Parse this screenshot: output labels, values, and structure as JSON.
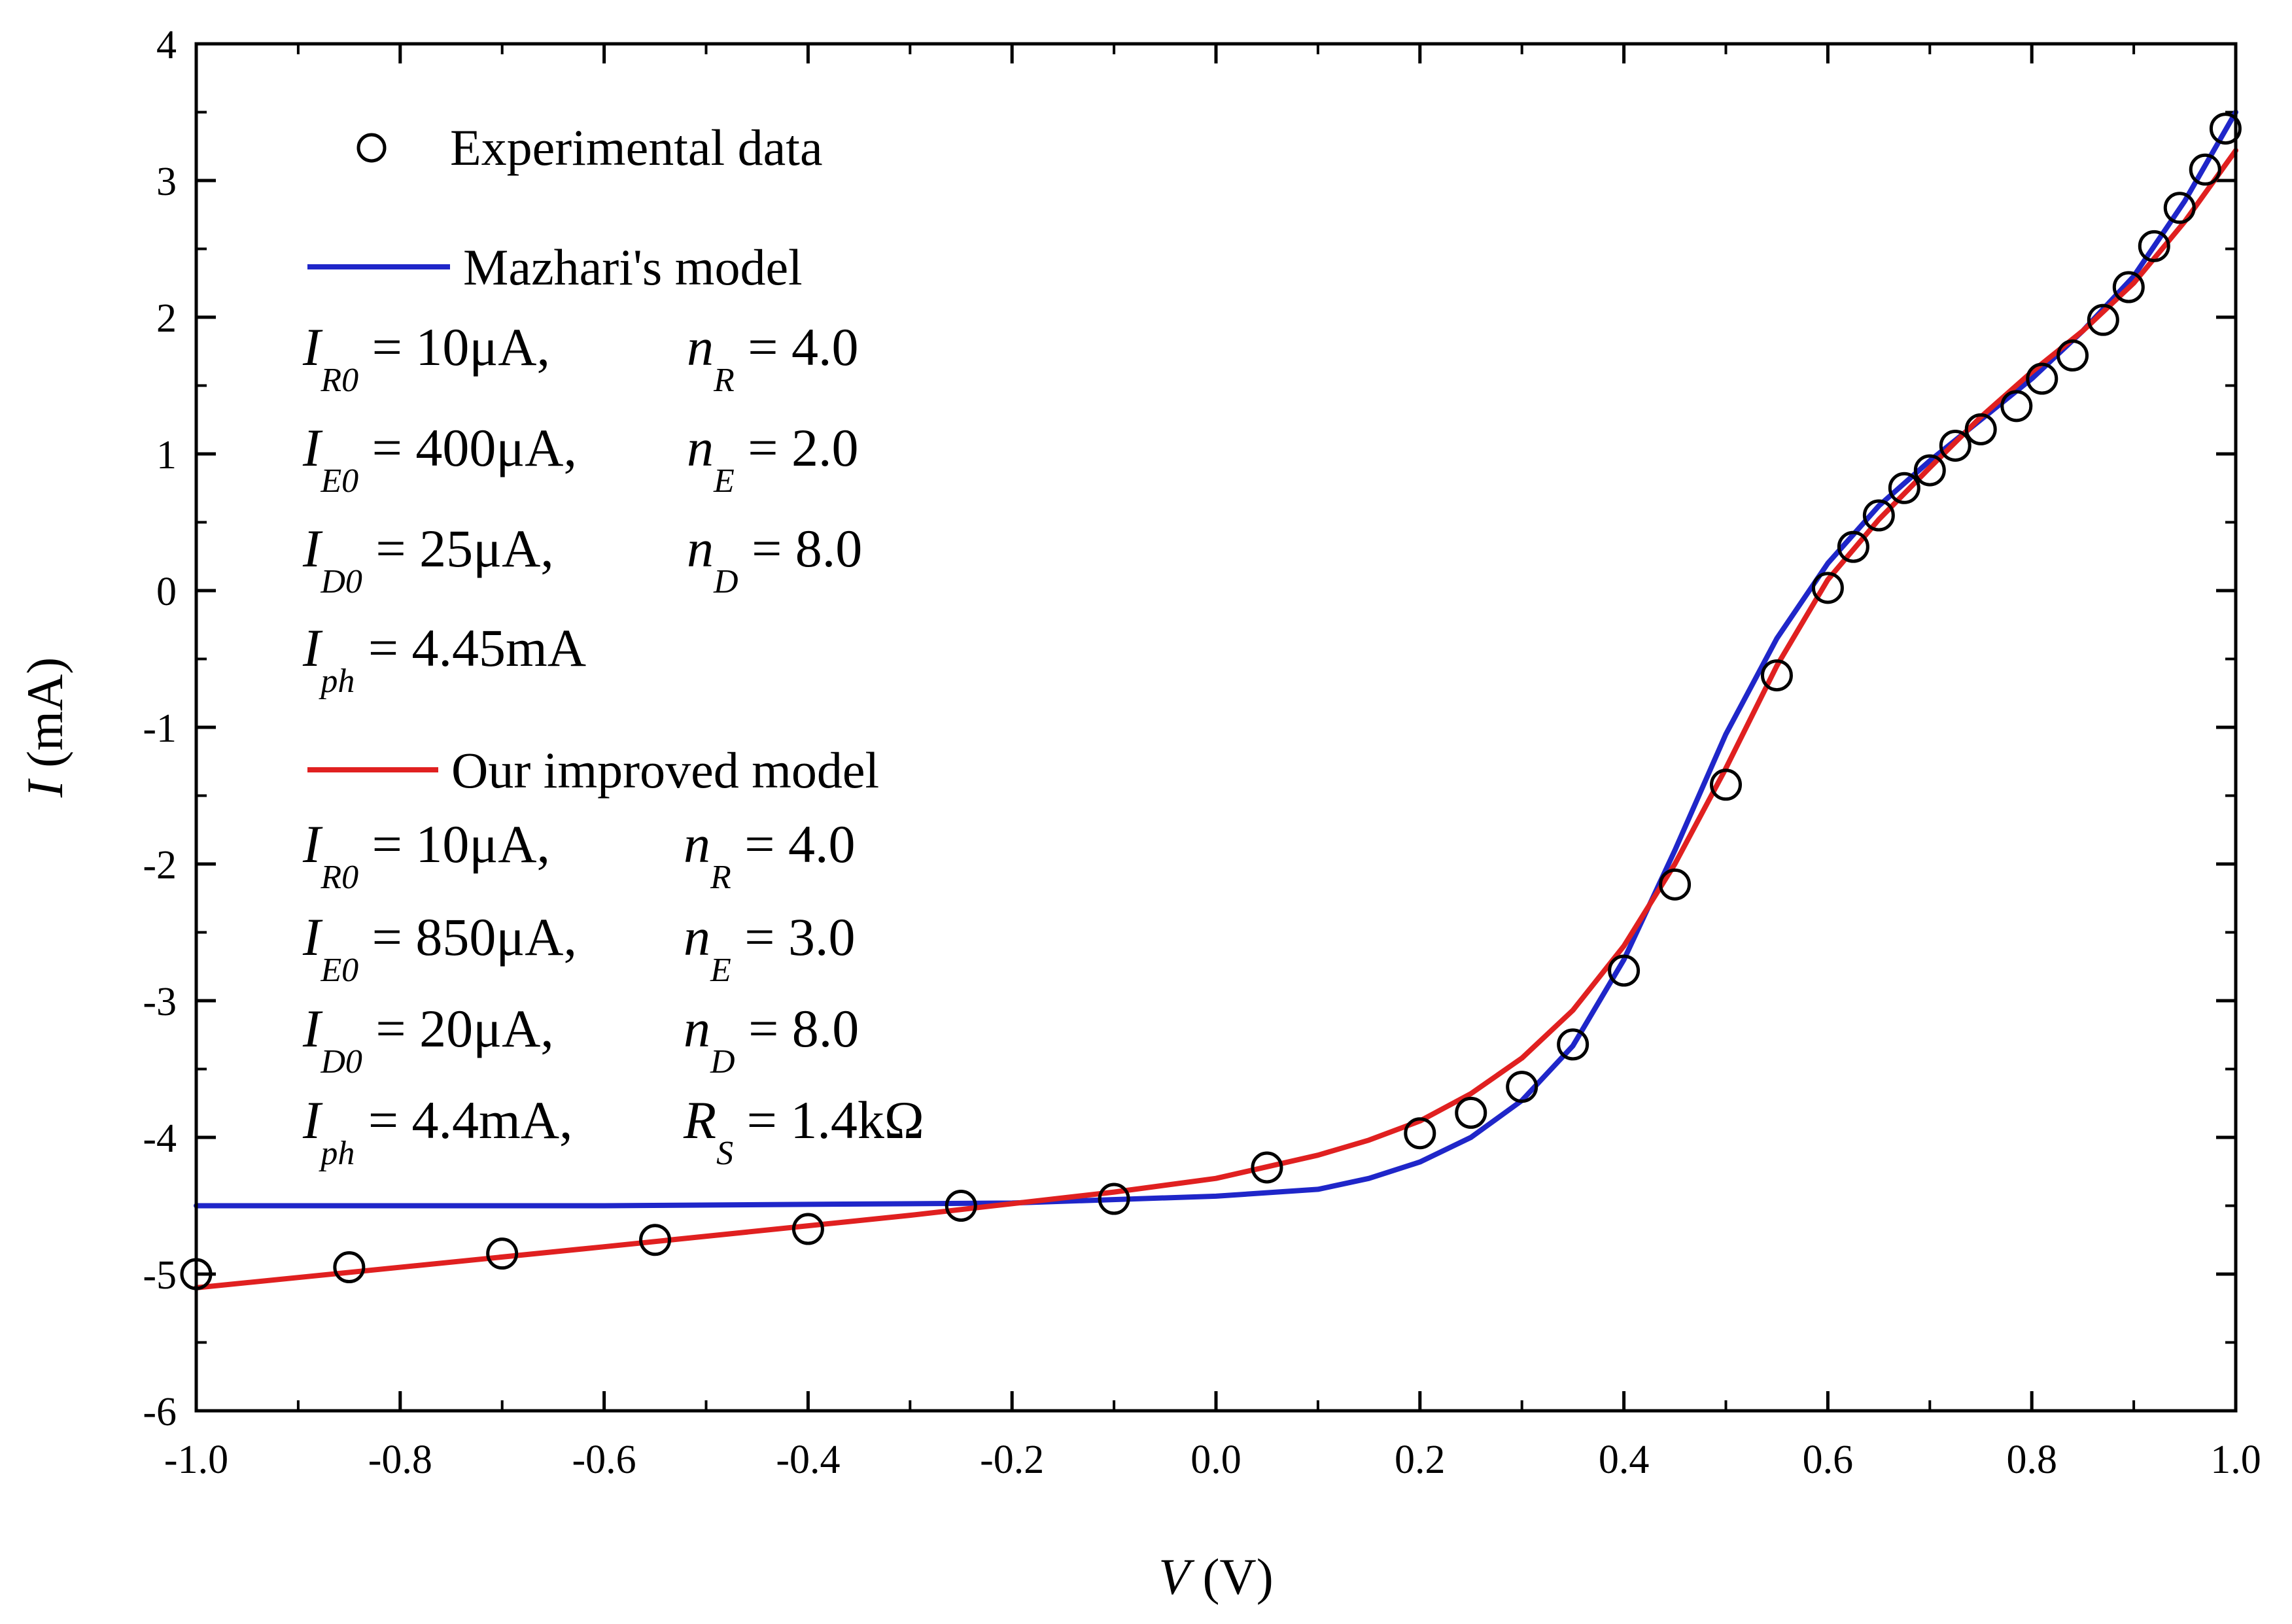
{
  "chart_data": {
    "type": "line",
    "xlabel": {
      "var": "V",
      "unit": " (V)"
    },
    "ylabel": {
      "var": "I",
      "unit": " (mA)"
    },
    "xlim": [
      -1.0,
      1.0
    ],
    "ylim": [
      -6,
      4
    ],
    "xticks": [
      -1.0,
      -0.8,
      -0.6,
      -0.4,
      -0.2,
      0.0,
      0.2,
      0.4,
      0.6,
      0.8,
      1.0
    ],
    "xtick_labels": [
      "-1.0",
      "-0.8",
      "-0.6",
      "-0.4",
      "-0.2",
      "0.0",
      "0.2",
      "0.4",
      "0.6",
      "0.8",
      "1.0"
    ],
    "yticks": [
      4,
      3,
      2,
      1,
      0,
      -1,
      -2,
      -3,
      -4,
      -5,
      -6
    ],
    "ytick_labels": [
      "4",
      "3",
      "2",
      "1",
      "0",
      "-1",
      "-2",
      "-3",
      "-4",
      "-5",
      "-6"
    ],
    "legend_position": "top-left",
    "series": [
      {
        "name": "Experimental data",
        "kind": "scatter",
        "marker": "open-circle",
        "color": "#000000",
        "x": [
          -1.0,
          -0.85,
          -0.7,
          -0.55,
          -0.4,
          -0.25,
          -0.1,
          0.05,
          0.2,
          0.25,
          0.3,
          0.35,
          0.4,
          0.45,
          0.5,
          0.55,
          0.6,
          0.625,
          0.65,
          0.675,
          0.7,
          0.725,
          0.75,
          0.785,
          0.81,
          0.84,
          0.87,
          0.895,
          0.92,
          0.945,
          0.97,
          0.99
        ],
        "y": [
          -5.0,
          -4.95,
          -4.85,
          -4.75,
          -4.67,
          -4.5,
          -4.45,
          -4.22,
          -3.97,
          -3.82,
          -3.63,
          -3.32,
          -2.78,
          -2.15,
          -1.42,
          -0.62,
          0.02,
          0.32,
          0.55,
          0.75,
          0.88,
          1.06,
          1.18,
          1.35,
          1.55,
          1.72,
          1.98,
          2.22,
          2.52,
          2.8,
          3.08,
          3.38
        ]
      },
      {
        "name": "Mazhari's model",
        "kind": "line",
        "color": "#1f26c9",
        "x": [
          -1.0,
          -0.6,
          -0.2,
          0.0,
          0.1,
          0.15,
          0.2,
          0.25,
          0.3,
          0.35,
          0.4,
          0.45,
          0.5,
          0.55,
          0.6,
          0.65,
          0.7,
          0.75,
          0.8,
          0.85,
          0.9,
          0.95,
          1.0
        ],
        "y": [
          -4.5,
          -4.5,
          -4.48,
          -4.43,
          -4.38,
          -4.3,
          -4.18,
          -4.0,
          -3.73,
          -3.33,
          -2.7,
          -1.9,
          -1.05,
          -0.35,
          0.2,
          0.62,
          0.95,
          1.25,
          1.55,
          1.9,
          2.3,
          2.85,
          3.5
        ]
      },
      {
        "name": "Our improved model",
        "kind": "line",
        "color": "#e02020",
        "x": [
          -1.0,
          -0.6,
          -0.3,
          -0.1,
          0.0,
          0.1,
          0.15,
          0.2,
          0.25,
          0.3,
          0.35,
          0.4,
          0.45,
          0.5,
          0.55,
          0.6,
          0.65,
          0.7,
          0.75,
          0.8,
          0.85,
          0.9,
          0.95,
          1.0
        ],
        "y": [
          -5.1,
          -4.8,
          -4.57,
          -4.4,
          -4.3,
          -4.13,
          -4.02,
          -3.88,
          -3.68,
          -3.42,
          -3.07,
          -2.6,
          -2.0,
          -1.3,
          -0.55,
          0.08,
          0.52,
          0.9,
          1.27,
          1.6,
          1.9,
          2.25,
          2.7,
          3.22
        ]
      }
    ],
    "annotations": {
      "mazhari_params": [
        {
          "a_sym": "I",
          "a_sub": "R0",
          "a_val": " = 10μA,",
          "b_sym": "n",
          "b_sub": "R",
          "b_val": " = 4.0"
        },
        {
          "a_sym": "I",
          "a_sub": "E0",
          "a_val": " = 400μA,",
          "b_sym": "n",
          "b_sub": "E",
          "b_val": " = 2.0"
        },
        {
          "a_sym": "I",
          "a_sub": "D0",
          "a_val": " = 25μA,",
          "b_sym": "n",
          "b_sub": "D",
          "b_val": " = 8.0"
        },
        {
          "a_sym": "I",
          "a_sub": "ph",
          "a_val": " = 4.45mA"
        }
      ],
      "improved_params": [
        {
          "a_sym": "I",
          "a_sub": "R0",
          "a_val": " = 10μA,",
          "b_sym": "n",
          "b_sub": "R",
          "b_val": " = 4.0"
        },
        {
          "a_sym": "I",
          "a_sub": "E0",
          "a_val": " = 850μA,",
          "b_sym": "n",
          "b_sub": "E",
          "b_val": " = 3.0"
        },
        {
          "a_sym": "I",
          "a_sub": "D0",
          "a_val": " = 20μA,",
          "b_sym": "n",
          "b_sub": "D",
          "b_val": " = 8.0"
        },
        {
          "a_sym": "I",
          "a_sub": "ph",
          "a_val": " = 4.4mA,",
          "b_sym": "R",
          "b_sub": "S",
          "b_val": " = 1.4kΩ"
        }
      ]
    }
  }
}
